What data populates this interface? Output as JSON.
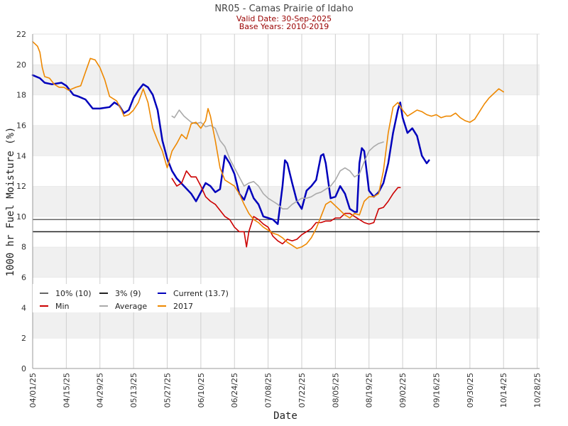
{
  "chart_data": {
    "type": "line",
    "title": "NR05 - Camas Prairie of Idaho",
    "subtitle_valid": "Valid Date: 30-Sep-2025",
    "subtitle_base": "Base Years: 2010-2019",
    "xlabel": "Date",
    "ylabel": "1000 hr Fuel Moisture (%)",
    "ylim": [
      0,
      22
    ],
    "y_ticks": [
      "0",
      "2",
      "4",
      "6",
      "8",
      "10",
      "12",
      "14",
      "16",
      "18",
      "20",
      "22"
    ],
    "x_range_days": [
      0,
      211
    ],
    "x_ticks": [
      {
        "day": 0,
        "label": "04/01/25"
      },
      {
        "day": 14,
        "label": "04/15/25"
      },
      {
        "day": 28,
        "label": "04/29/25"
      },
      {
        "day": 42,
        "label": "05/13/25"
      },
      {
        "day": 56,
        "label": "05/27/25"
      },
      {
        "day": 70,
        "label": "06/10/25"
      },
      {
        "day": 84,
        "label": "06/24/25"
      },
      {
        "day": 98,
        "label": "07/08/25"
      },
      {
        "day": 112,
        "label": "07/22/25"
      },
      {
        "day": 126,
        "label": "08/05/25"
      },
      {
        "day": 140,
        "label": "08/19/25"
      },
      {
        "day": 154,
        "label": "09/02/25"
      },
      {
        "day": 168,
        "label": "09/16/25"
      },
      {
        "day": 182,
        "label": "09/30/25"
      },
      {
        "day": 196,
        "label": "10/14/25"
      },
      {
        "day": 210,
        "label": "10/28/25"
      }
    ],
    "thresholds": [
      {
        "name": "10% (10)",
        "value": 9.8,
        "color": "#666666"
      },
      {
        "name": "3% (9)",
        "value": 9.0,
        "color": "#222222"
      }
    ],
    "series": [
      {
        "name": "Current (13.7)",
        "color": "#0000bb",
        "points": [
          [
            0,
            19.3
          ],
          [
            3,
            19.1
          ],
          [
            5,
            18.8
          ],
          [
            8,
            18.7
          ],
          [
            12,
            18.8
          ],
          [
            14,
            18.6
          ],
          [
            17,
            18.0
          ],
          [
            19,
            17.9
          ],
          [
            22,
            17.7
          ],
          [
            25,
            17.1
          ],
          [
            28,
            17.1
          ],
          [
            32,
            17.2
          ],
          [
            34,
            17.5
          ],
          [
            36,
            17.3
          ],
          [
            38,
            16.8
          ],
          [
            40,
            17.0
          ],
          [
            42,
            17.8
          ],
          [
            44,
            18.3
          ],
          [
            46,
            18.7
          ],
          [
            48,
            18.5
          ],
          [
            50,
            18.0
          ],
          [
            52,
            17.0
          ],
          [
            54,
            15.0
          ],
          [
            56,
            13.8
          ],
          [
            58,
            13.0
          ],
          [
            60,
            12.5
          ],
          [
            63,
            12.0
          ],
          [
            66,
            11.5
          ],
          [
            68,
            11.0
          ],
          [
            70,
            11.6
          ],
          [
            72,
            12.2
          ],
          [
            74,
            12.0
          ],
          [
            76,
            11.6
          ],
          [
            78,
            11.8
          ],
          [
            80,
            14.0
          ],
          [
            82,
            13.5
          ],
          [
            84,
            12.8
          ],
          [
            86,
            11.5
          ],
          [
            88,
            11.1
          ],
          [
            90,
            12.0
          ],
          [
            92,
            11.2
          ],
          [
            94,
            10.8
          ],
          [
            96,
            10.0
          ],
          [
            98,
            9.9
          ],
          [
            100,
            9.8
          ],
          [
            102,
            9.5
          ],
          [
            104,
            12.0
          ],
          [
            105,
            13.7
          ],
          [
            106,
            13.5
          ],
          [
            108,
            12.2
          ],
          [
            110,
            11.0
          ],
          [
            112,
            10.5
          ],
          [
            114,
            11.7
          ],
          [
            116,
            12.0
          ],
          [
            118,
            12.4
          ],
          [
            120,
            14.0
          ],
          [
            121,
            14.1
          ],
          [
            122,
            13.5
          ],
          [
            124,
            11.2
          ],
          [
            126,
            11.3
          ],
          [
            128,
            12.0
          ],
          [
            130,
            11.5
          ],
          [
            132,
            10.5
          ],
          [
            134,
            10.3
          ],
          [
            135,
            10.3
          ],
          [
            136,
            13.5
          ],
          [
            137,
            14.5
          ],
          [
            138,
            14.3
          ],
          [
            140,
            11.7
          ],
          [
            142,
            11.3
          ],
          [
            144,
            11.6
          ],
          [
            146,
            12.2
          ],
          [
            148,
            13.5
          ],
          [
            150,
            15.5
          ],
          [
            152,
            17.0
          ],
          [
            153,
            17.5
          ],
          [
            154,
            16.5
          ],
          [
            156,
            15.5
          ],
          [
            158,
            15.8
          ],
          [
            160,
            15.3
          ],
          [
            162,
            14.0
          ],
          [
            164,
            13.5
          ],
          [
            165,
            13.7
          ]
        ]
      },
      {
        "name": "Min",
        "color": "#cc0000",
        "points": [
          [
            58,
            12.5
          ],
          [
            60,
            12.0
          ],
          [
            62,
            12.2
          ],
          [
            64,
            13.0
          ],
          [
            66,
            12.6
          ],
          [
            68,
            12.6
          ],
          [
            70,
            12.0
          ],
          [
            72,
            11.3
          ],
          [
            74,
            11.0
          ],
          [
            76,
            10.8
          ],
          [
            78,
            10.4
          ],
          [
            80,
            10.0
          ],
          [
            82,
            9.8
          ],
          [
            84,
            9.3
          ],
          [
            86,
            9.0
          ],
          [
            88,
            9.0
          ],
          [
            89,
            8.0
          ],
          [
            90,
            9.0
          ],
          [
            92,
            10.0
          ],
          [
            94,
            9.8
          ],
          [
            96,
            9.5
          ],
          [
            98,
            9.3
          ],
          [
            100,
            8.7
          ],
          [
            102,
            8.4
          ],
          [
            104,
            8.2
          ],
          [
            106,
            8.5
          ],
          [
            108,
            8.4
          ],
          [
            110,
            8.5
          ],
          [
            112,
            8.8
          ],
          [
            114,
            9.0
          ],
          [
            116,
            9.2
          ],
          [
            118,
            9.6
          ],
          [
            120,
            9.6
          ],
          [
            122,
            9.7
          ],
          [
            124,
            9.7
          ],
          [
            126,
            9.9
          ],
          [
            128,
            9.9
          ],
          [
            130,
            10.2
          ],
          [
            132,
            10.2
          ],
          [
            134,
            10.0
          ],
          [
            136,
            9.8
          ],
          [
            138,
            9.6
          ],
          [
            140,
            9.5
          ],
          [
            142,
            9.6
          ],
          [
            144,
            10.5
          ],
          [
            146,
            10.6
          ],
          [
            148,
            11.0
          ],
          [
            150,
            11.5
          ],
          [
            152,
            11.9
          ],
          [
            153,
            11.9
          ]
        ]
      },
      {
        "name": "Average",
        "color": "#aaaaaa",
        "points": [
          [
            58,
            16.6
          ],
          [
            59,
            16.5
          ],
          [
            61,
            17.0
          ],
          [
            63,
            16.6
          ],
          [
            66,
            16.2
          ],
          [
            68,
            16.1
          ],
          [
            70,
            16.2
          ],
          [
            72,
            15.9
          ],
          [
            74,
            16.0
          ],
          [
            76,
            15.8
          ],
          [
            78,
            15.0
          ],
          [
            80,
            14.6
          ],
          [
            82,
            13.8
          ],
          [
            84,
            13.2
          ],
          [
            86,
            12.6
          ],
          [
            88,
            12.0
          ],
          [
            90,
            12.2
          ],
          [
            92,
            12.3
          ],
          [
            94,
            12.0
          ],
          [
            96,
            11.5
          ],
          [
            98,
            11.2
          ],
          [
            100,
            11.0
          ],
          [
            102,
            10.8
          ],
          [
            104,
            10.5
          ],
          [
            106,
            10.5
          ],
          [
            108,
            10.8
          ],
          [
            110,
            11.0
          ],
          [
            112,
            11.2
          ],
          [
            114,
            11.2
          ],
          [
            116,
            11.3
          ],
          [
            118,
            11.5
          ],
          [
            120,
            11.6
          ],
          [
            122,
            11.8
          ],
          [
            124,
            12.0
          ],
          [
            126,
            12.4
          ],
          [
            128,
            13.0
          ],
          [
            130,
            13.2
          ],
          [
            132,
            13.0
          ],
          [
            134,
            12.6
          ],
          [
            136,
            12.8
          ],
          [
            138,
            13.6
          ],
          [
            140,
            14.3
          ],
          [
            142,
            14.6
          ],
          [
            144,
            14.8
          ],
          [
            146,
            14.9
          ]
        ]
      },
      {
        "name": "2017",
        "color": "#ee8800",
        "points": [
          [
            0,
            21.5
          ],
          [
            2,
            21.2
          ],
          [
            3,
            20.8
          ],
          [
            4,
            19.8
          ],
          [
            5,
            19.2
          ],
          [
            7,
            19.1
          ],
          [
            9,
            18.7
          ],
          [
            11,
            18.5
          ],
          [
            13,
            18.5
          ],
          [
            15,
            18.3
          ],
          [
            18,
            18.5
          ],
          [
            20,
            18.6
          ],
          [
            22,
            19.5
          ],
          [
            24,
            20.4
          ],
          [
            26,
            20.3
          ],
          [
            28,
            19.8
          ],
          [
            30,
            19.0
          ],
          [
            32,
            17.9
          ],
          [
            35,
            17.6
          ],
          [
            37,
            17.0
          ],
          [
            38,
            16.6
          ],
          [
            40,
            16.7
          ],
          [
            42,
            17.0
          ],
          [
            44,
            17.5
          ],
          [
            46,
            18.4
          ],
          [
            48,
            17.5
          ],
          [
            50,
            15.8
          ],
          [
            52,
            15.0
          ],
          [
            54,
            14.3
          ],
          [
            56,
            13.2
          ],
          [
            58,
            14.3
          ],
          [
            60,
            14.8
          ],
          [
            62,
            15.4
          ],
          [
            64,
            15.1
          ],
          [
            66,
            16.1
          ],
          [
            68,
            16.2
          ],
          [
            70,
            15.8
          ],
          [
            72,
            16.3
          ],
          [
            73,
            17.1
          ],
          [
            74,
            16.6
          ],
          [
            76,
            15.0
          ],
          [
            78,
            13.2
          ],
          [
            80,
            12.4
          ],
          [
            82,
            12.2
          ],
          [
            84,
            12.0
          ],
          [
            86,
            11.5
          ],
          [
            88,
            10.8
          ],
          [
            90,
            10.2
          ],
          [
            92,
            9.8
          ],
          [
            94,
            9.6
          ],
          [
            96,
            9.3
          ],
          [
            98,
            9.1
          ],
          [
            100,
            8.9
          ],
          [
            102,
            8.8
          ],
          [
            104,
            8.6
          ],
          [
            106,
            8.3
          ],
          [
            108,
            8.1
          ],
          [
            110,
            7.9
          ],
          [
            112,
            8.0
          ],
          [
            114,
            8.2
          ],
          [
            116,
            8.6
          ],
          [
            118,
            9.2
          ],
          [
            120,
            10.0
          ],
          [
            122,
            10.8
          ],
          [
            124,
            11.0
          ],
          [
            126,
            10.7
          ],
          [
            128,
            10.4
          ],
          [
            130,
            10.1
          ],
          [
            132,
            9.9
          ],
          [
            134,
            10.2
          ],
          [
            136,
            10.1
          ],
          [
            138,
            11.0
          ],
          [
            140,
            11.3
          ],
          [
            142,
            11.3
          ],
          [
            144,
            11.5
          ],
          [
            146,
            13.0
          ],
          [
            148,
            15.5
          ],
          [
            150,
            17.2
          ],
          [
            152,
            17.5
          ],
          [
            154,
            17.0
          ],
          [
            156,
            16.6
          ],
          [
            158,
            16.8
          ],
          [
            160,
            17.0
          ],
          [
            162,
            16.9
          ],
          [
            164,
            16.7
          ],
          [
            166,
            16.6
          ],
          [
            168,
            16.7
          ],
          [
            170,
            16.5
          ],
          [
            172,
            16.6
          ],
          [
            174,
            16.6
          ],
          [
            176,
            16.8
          ],
          [
            178,
            16.5
          ],
          [
            180,
            16.3
          ],
          [
            182,
            16.2
          ],
          [
            184,
            16.4
          ],
          [
            186,
            16.9
          ],
          [
            188,
            17.4
          ],
          [
            190,
            17.8
          ],
          [
            192,
            18.1
          ],
          [
            194,
            18.4
          ],
          [
            196,
            18.2
          ]
        ]
      }
    ],
    "legend": [
      {
        "label": "10% (10)",
        "color": "#666666"
      },
      {
        "label": "3% (9)",
        "color": "#222222"
      },
      {
        "label": "Current (13.7)",
        "color": "#0000bb"
      },
      {
        "label": "Min",
        "color": "#cc0000"
      },
      {
        "label": "Average",
        "color": "#aaaaaa"
      },
      {
        "label": "2017",
        "color": "#ee8800"
      }
    ]
  }
}
